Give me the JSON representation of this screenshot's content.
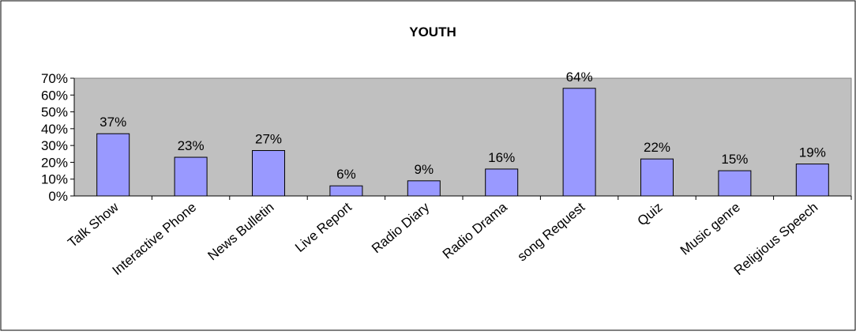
{
  "chart_data": {
    "type": "bar",
    "title": "YOUTH",
    "xlabel": "",
    "ylabel": "",
    "categories": [
      "Talk Show",
      "Interactive Phone",
      "News Bulletin",
      "Live Report",
      "Radio Diary",
      "Radio Drama",
      "song Request",
      "Quiz",
      "Music genre",
      "Religious Speech"
    ],
    "values": [
      37,
      23,
      27,
      6,
      9,
      16,
      64,
      22,
      15,
      19
    ],
    "data_labels": [
      "37%",
      "23%",
      "27%",
      "6%",
      "9%",
      "16%",
      "64%",
      "22%",
      "15%",
      "19%"
    ],
    "ylim": [
      0,
      70
    ],
    "yticks": [
      0,
      10,
      20,
      30,
      40,
      50,
      60,
      70
    ],
    "ytick_labels": [
      "0%",
      "10%",
      "20%",
      "30%",
      "40%",
      "50%",
      "60%",
      "70%"
    ],
    "grid": false,
    "legend": "none",
    "colors": {
      "bar_fill": "#9999ff",
      "bar_stroke": "#000000",
      "plot_background": "#c0c0c0",
      "page_background": "#ffffff"
    }
  }
}
